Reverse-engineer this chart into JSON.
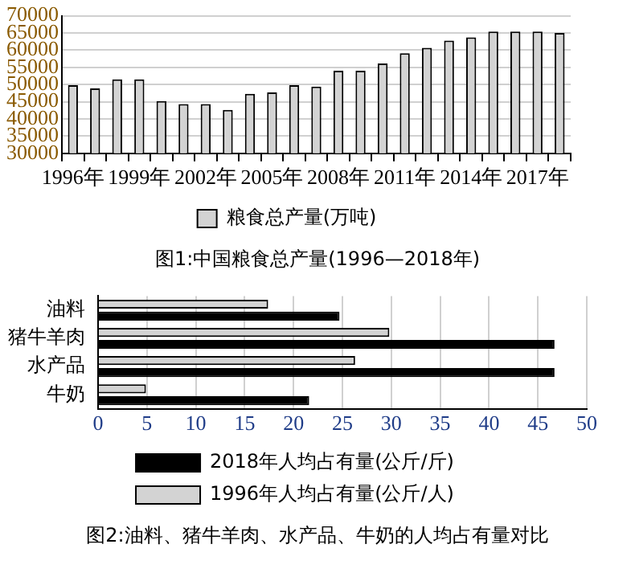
{
  "chart_data": [
    {
      "type": "bar",
      "title": "图1:中国粮食总产量(1996—2018年)",
      "categories": [
        "1996年",
        null,
        null,
        "1999年",
        null,
        null,
        "2002年",
        null,
        null,
        "2005年",
        null,
        null,
        "2008年",
        null,
        null,
        "2011年",
        null,
        null,
        "2014年",
        null,
        null,
        "2017年",
        null
      ],
      "series": [
        {
          "name": "粮食总产量(万吨)",
          "color": "#d3d3d3",
          "values": [
            49800,
            48900,
            51500,
            51500,
            45200,
            44300,
            44300,
            42600,
            47300,
            47700,
            49800,
            49400,
            54000,
            54000,
            56100,
            59100,
            60700,
            62800,
            63700,
            65400,
            65400,
            65400,
            65000
          ]
        }
      ],
      "ylim": [
        30000,
        70000
      ],
      "yticks": [
        30000,
        35000,
        40000,
        45000,
        50000,
        55000,
        60000,
        65000,
        70000
      ],
      "grid": "y",
      "legend": "bottom"
    },
    {
      "type": "bar",
      "orientation": "horizontal",
      "title": "图2:油料、猪牛羊肉、水产品、牛奶的人均占有量对比",
      "categories": [
        "油料",
        "猪牛羊肉",
        "水产品",
        "牛奶"
      ],
      "series": [
        {
          "name": "2018年人均占有量(公斤/斤)",
          "color": "#000000",
          "values": [
            24.7,
            46.7,
            46.7,
            21.6
          ]
        },
        {
          "name": "1996年人均占有量(公斤/人)",
          "color": "#d3d3d3",
          "values": [
            17.4,
            29.8,
            26.3,
            4.9
          ]
        }
      ],
      "xlim": [
        0,
        50
      ],
      "xticks": [
        0,
        5,
        10,
        15,
        20,
        25,
        30,
        35,
        40,
        45,
        50
      ],
      "grid": "x",
      "legend": "bottom"
    }
  ]
}
